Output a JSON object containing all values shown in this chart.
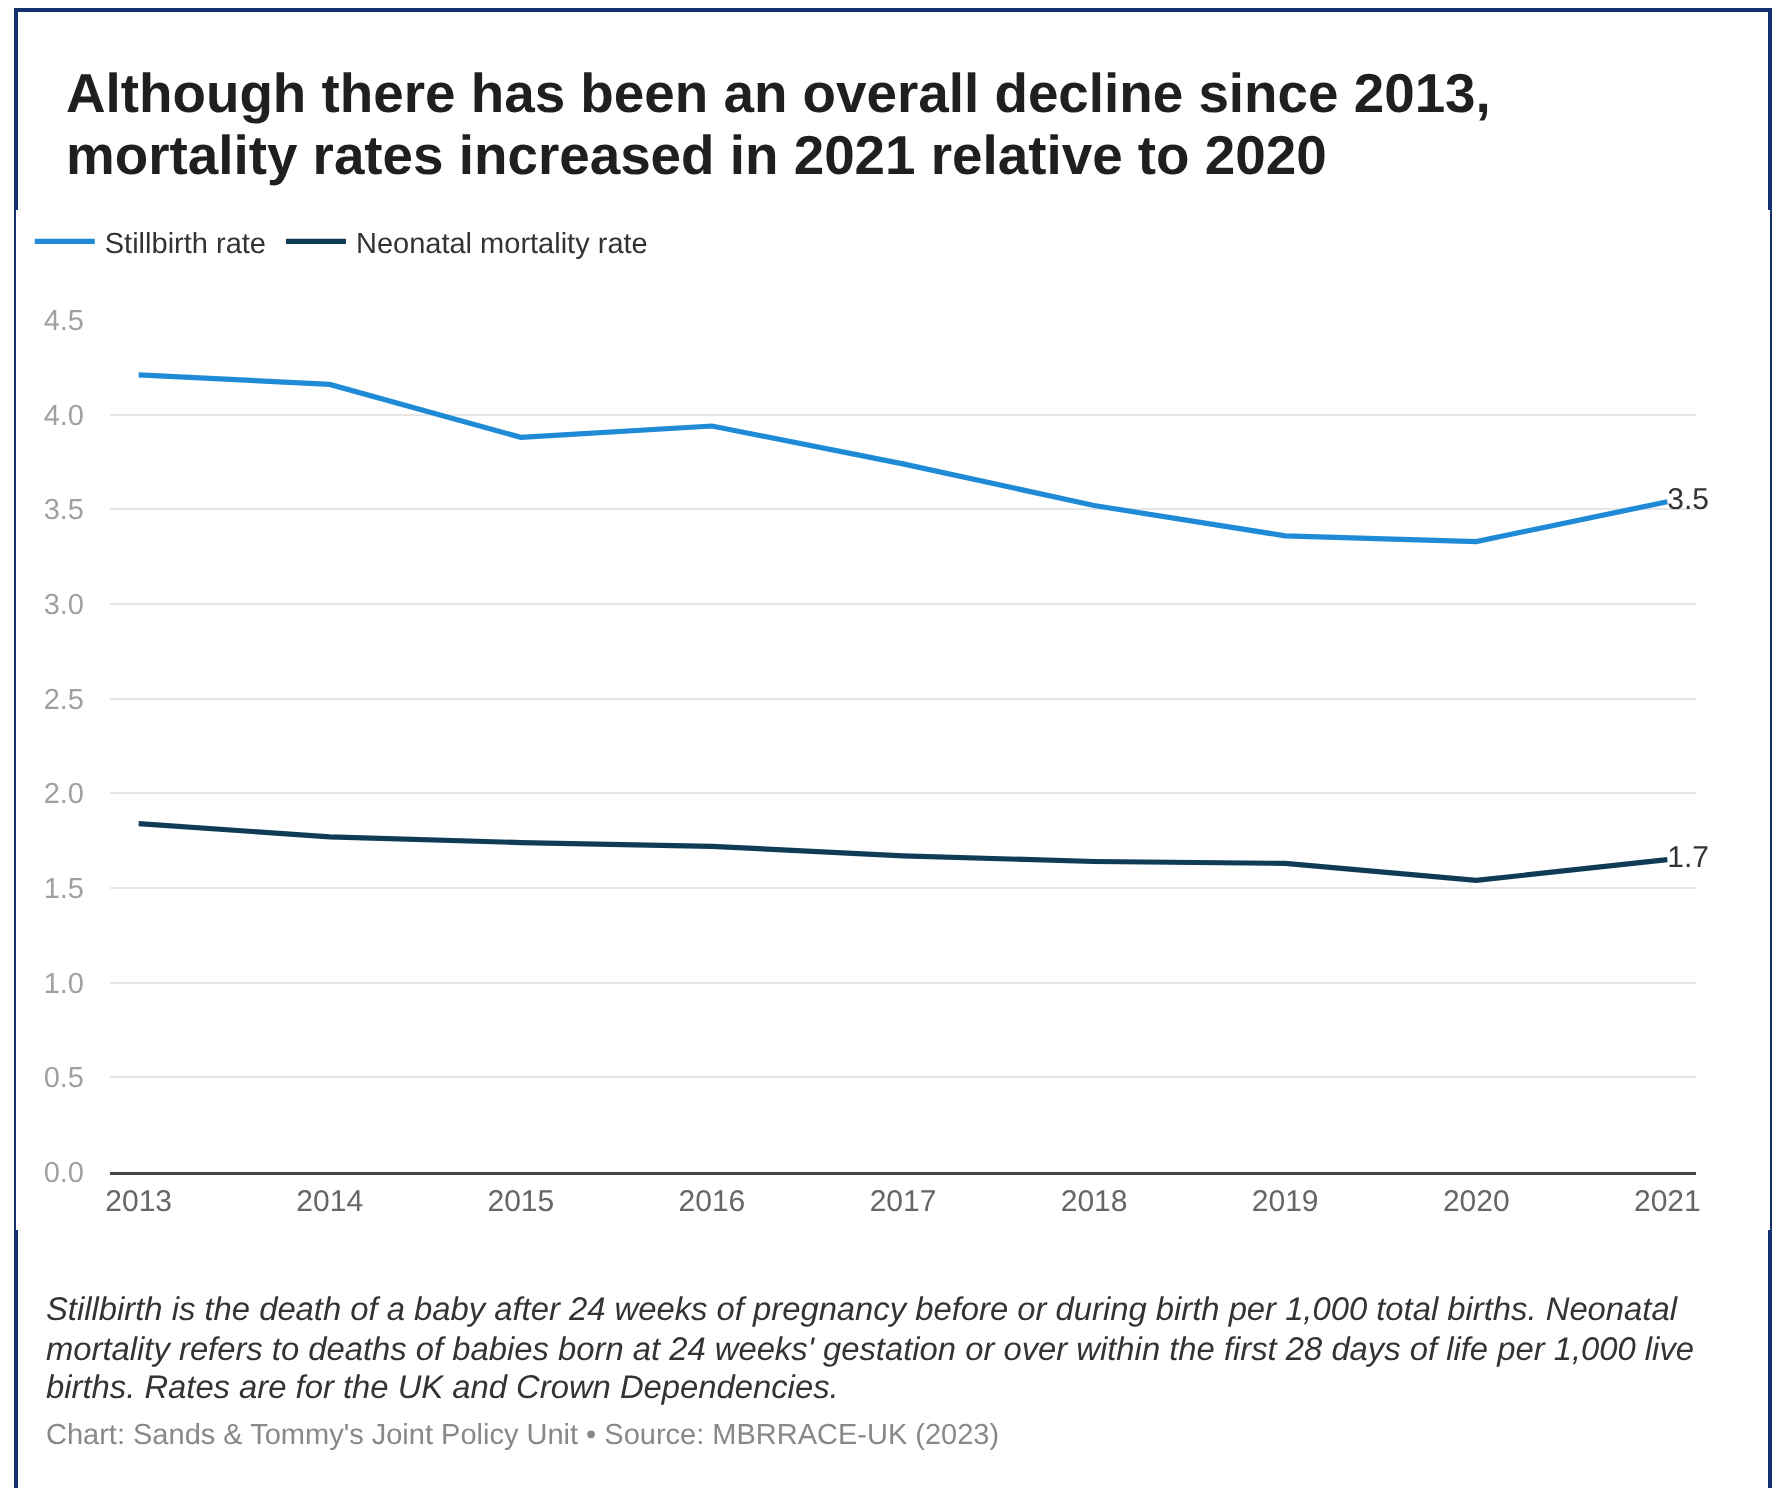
{
  "chart_data": {
    "type": "line",
    "title": "Although there has been an overall decline since 2013, mortality rates increased in 2021 relative to 2020",
    "x": [
      2013,
      2014,
      2015,
      2016,
      2017,
      2018,
      2019,
      2020,
      2021
    ],
    "xlim": [
      2012.85,
      2021.15
    ],
    "xticks": [
      2013,
      2014,
      2015,
      2016,
      2017,
      2018,
      2019,
      2020,
      2021
    ],
    "ylim": [
      0,
      4.5
    ],
    "yticks": [
      {
        "value": 0,
        "label": "0.0"
      },
      0.5,
      {
        "value": 1,
        "label": "1.0"
      },
      1.5,
      {
        "value": 2,
        "label": "2.0"
      },
      2.5,
      {
        "value": 3,
        "label": "3.0"
      },
      3.5,
      {
        "value": 4,
        "label": "4.0"
      },
      4.5
    ],
    "series": [
      {
        "name": "Stillbirth rate",
        "color": "#1f8ad6",
        "values": [
          4.21,
          4.16,
          3.88,
          3.94,
          3.74,
          3.52,
          3.36,
          3.33,
          3.54
        ],
        "value_labels": [
          null,
          null,
          null,
          null,
          null,
          null,
          null,
          null,
          "3.5"
        ]
      },
      {
        "name": "Neonatal mortality rate",
        "color": "#0f3b57",
        "values": [
          1.84,
          1.77,
          1.74,
          1.72,
          1.67,
          1.64,
          1.63,
          1.54,
          1.65
        ],
        "value_labels": [
          null,
          null,
          null,
          null,
          null,
          null,
          null,
          null,
          "1.7"
        ]
      }
    ],
    "grid": "y",
    "legend": "top left",
    "annotations": [
      "Stillbirth is the death of a baby after 24 weeks of pregnancy before or during birth per 1,000 total births. Neonatal mortality refers to deaths of babies born at 24 weeks' gestation or over within the first 28 days of life per 1,000 live births. Rates are for the UK and Crown Dependencies.",
      "Chart: Sands & Tommy's Joint Policy Unit • Source: MBRRACE-UK (2023)"
    ]
  }
}
